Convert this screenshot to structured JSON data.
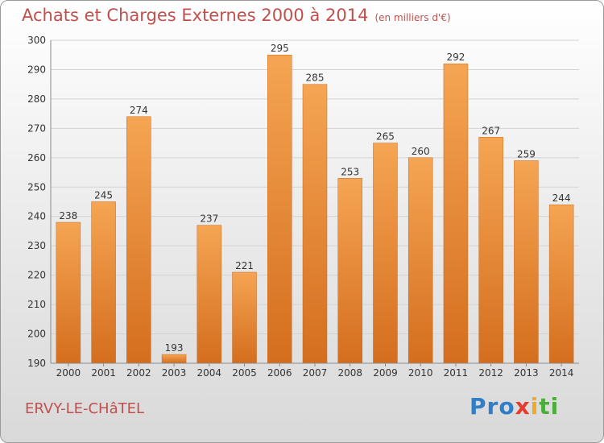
{
  "header": {
    "title": "Achats et Charges Externes 2000 à 2014",
    "subtitle": "(en milliers d'€)"
  },
  "footer": {
    "city": "ERVY-LE-CHâTEL",
    "logo": [
      "Pro",
      "x",
      "i",
      "ti"
    ]
  },
  "colors": {
    "title": "#c0504d",
    "bar_top": "#f5a553",
    "bar_bottom": "#d46e1e",
    "grid": "#d3d3d3",
    "axis_text": "#333333"
  },
  "chart_data": {
    "type": "bar",
    "title": "Achats et Charges Externes 2000 à 2014",
    "subtitle": "(en milliers d'€)",
    "categories": [
      "2000",
      "2001",
      "2002",
      "2003",
      "2004",
      "2005",
      "2006",
      "2007",
      "2008",
      "2009",
      "2010",
      "2011",
      "2012",
      "2013",
      "2014"
    ],
    "values": [
      238,
      245,
      274,
      193,
      237,
      221,
      295,
      285,
      253,
      265,
      260,
      292,
      267,
      259,
      244
    ],
    "ylim": [
      190,
      300
    ],
    "yticks": [
      190,
      200,
      210,
      220,
      230,
      240,
      250,
      260,
      270,
      280,
      290,
      300
    ],
    "grid": true,
    "data_labels": true,
    "legend": "none"
  }
}
